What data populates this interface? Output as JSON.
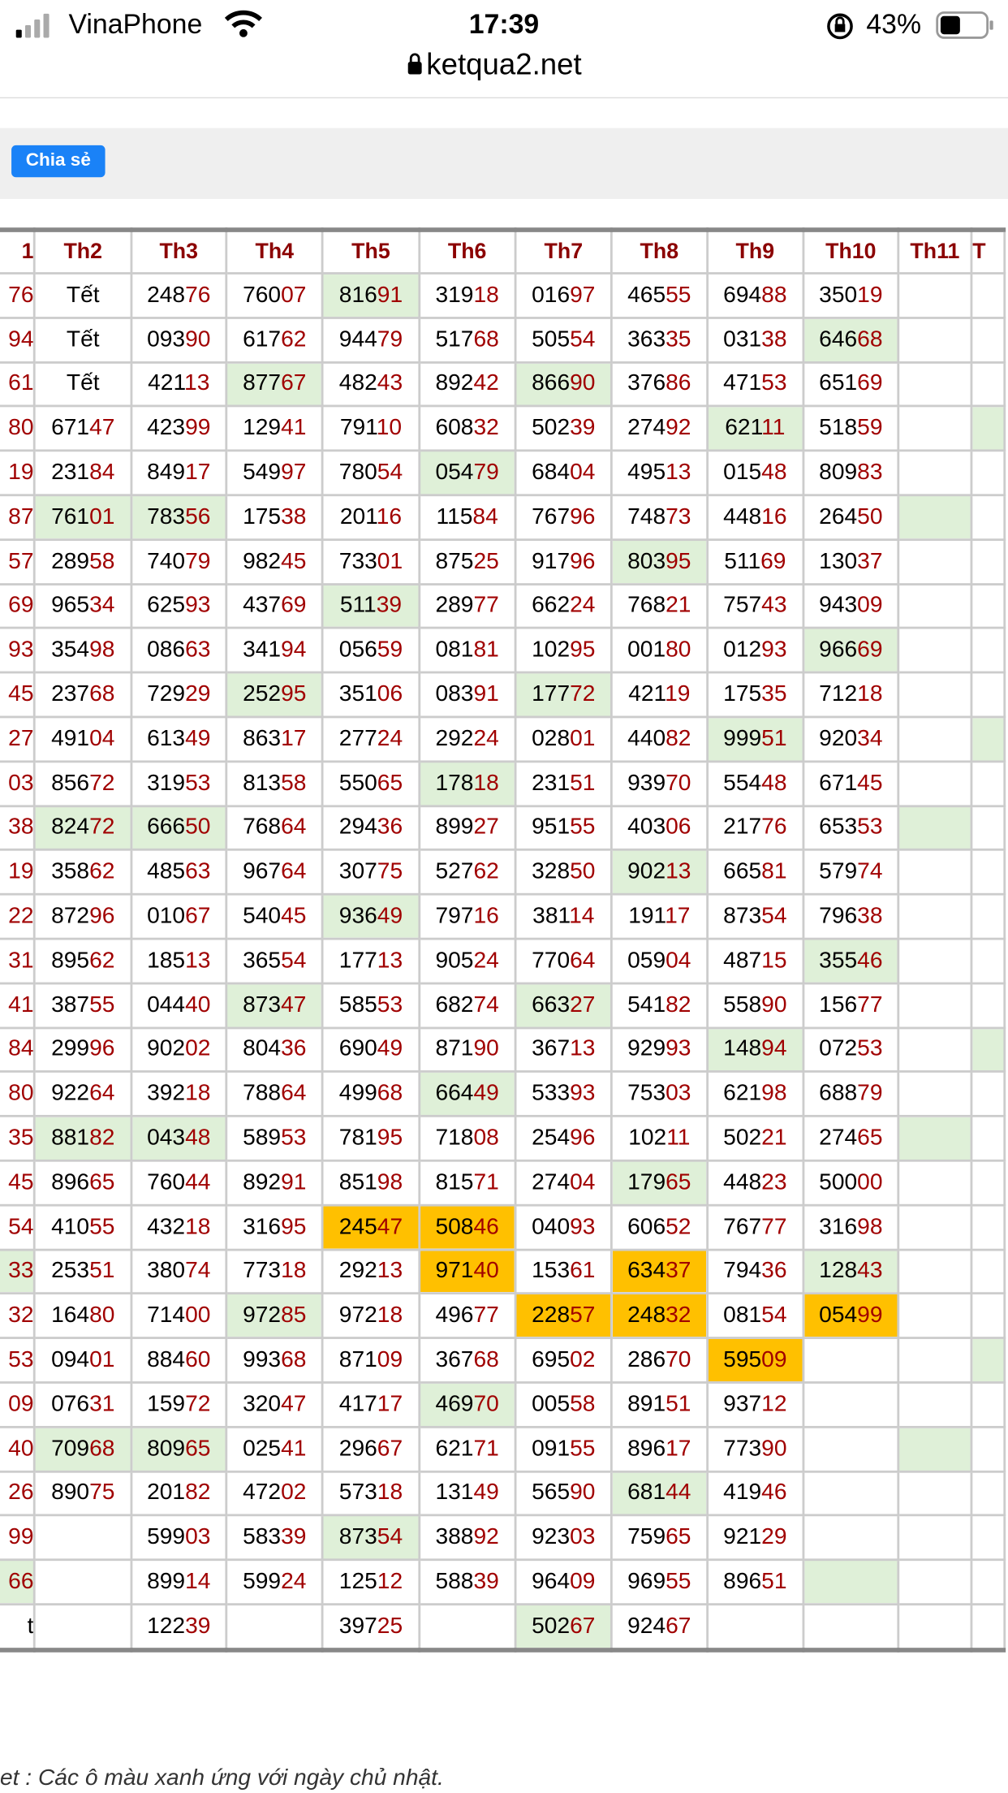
{
  "status": {
    "carrier": "VinaPhone",
    "time": "17:39",
    "battery": "43%"
  },
  "url": "ketqua2.net",
  "share_button": "Chia sẻ",
  "colors": {
    "green": "#dff0d8",
    "orange": "#ffc000"
  },
  "table": {
    "header": [
      "1",
      "Th2",
      "Th3",
      "Th4",
      "Th5",
      "Th6",
      "Th7",
      "Th8",
      "Th9",
      "Th10",
      "Th11",
      "T"
    ],
    "rows": [
      [
        "76",
        "Tết",
        "24876",
        "76007",
        {
          "text": "81691",
          "bg": "green"
        },
        "31918",
        "01697",
        "46555",
        "69488",
        "35019",
        null,
        null
      ],
      [
        "94",
        "Tết",
        "09390",
        "61762",
        "94479",
        "51768",
        "50554",
        "36335",
        "03138",
        {
          "text": "64668",
          "bg": "green"
        },
        null,
        null
      ],
      [
        "61",
        "Tết",
        "42113",
        {
          "text": "87767",
          "bg": "green"
        },
        "48243",
        "89242",
        {
          "text": "86690",
          "bg": "green"
        },
        "37686",
        "47153",
        "65169",
        null,
        null
      ],
      [
        "80",
        "67147",
        "42399",
        "12941",
        "79110",
        "60832",
        "50239",
        "27492",
        {
          "text": "62111",
          "bg": "green"
        },
        "51859",
        null,
        {
          "bg": "green"
        }
      ],
      [
        "19",
        "23184",
        "84917",
        "54997",
        "78054",
        {
          "text": "05479",
          "bg": "green"
        },
        "68404",
        "49513",
        "01548",
        "80983",
        null,
        null
      ],
      [
        "87",
        {
          "text": "76101",
          "bg": "green"
        },
        {
          "text": "78356",
          "bg": "green"
        },
        "17538",
        "20116",
        "11584",
        "76796",
        "74873",
        "44816",
        "26450",
        {
          "bg": "green"
        },
        null
      ],
      [
        "57",
        "28958",
        "74079",
        "98245",
        "73301",
        "87525",
        "91796",
        {
          "text": "80395",
          "bg": "green"
        },
        "51169",
        "13037",
        null,
        null
      ],
      [
        "69",
        "96534",
        "62593",
        "43769",
        {
          "text": "51139",
          "bg": "green"
        },
        "28977",
        "66224",
        "76821",
        "75743",
        "94309",
        null,
        null
      ],
      [
        "93",
        "35498",
        "08663",
        "34194",
        "05659",
        "08181",
        "10295",
        "00180",
        "01293",
        {
          "text": "96669",
          "bg": "green"
        },
        null,
        null
      ],
      [
        "45",
        "23768",
        "72929",
        {
          "text": "25295",
          "bg": "green"
        },
        "35106",
        "08391",
        {
          "text": "17772",
          "bg": "green"
        },
        "42119",
        "17535",
        "71218",
        null,
        null
      ],
      [
        "27",
        "49104",
        "61349",
        "86317",
        "27724",
        "29224",
        "02801",
        "44082",
        {
          "text": "99951",
          "bg": "green"
        },
        "92034",
        null,
        {
          "bg": "green"
        }
      ],
      [
        "03",
        "85672",
        "31953",
        "81358",
        "55065",
        {
          "text": "17818",
          "bg": "green"
        },
        "23151",
        "93970",
        "55448",
        "67145",
        null,
        null
      ],
      [
        "38",
        {
          "text": "82472",
          "bg": "green"
        },
        {
          "text": "66650",
          "bg": "green"
        },
        "76864",
        "29436",
        "89927",
        "95155",
        "40306",
        "21776",
        "65353",
        {
          "bg": "green"
        },
        null
      ],
      [
        "19",
        "35862",
        "48563",
        "96764",
        "30775",
        "52762",
        "32850",
        {
          "text": "90213",
          "bg": "green"
        },
        "66581",
        "57974",
        null,
        null
      ],
      [
        "22",
        "87296",
        "01067",
        "54045",
        {
          "text": "93649",
          "bg": "green"
        },
        "79716",
        "38114",
        "19117",
        "87354",
        "79638",
        null,
        null
      ],
      [
        "31",
        "89562",
        "18513",
        "36554",
        "17713",
        "90524",
        "77064",
        "05904",
        "48715",
        {
          "text": "35546",
          "bg": "green"
        },
        null,
        null
      ],
      [
        "41",
        "38755",
        "04440",
        {
          "text": "87347",
          "bg": "green"
        },
        "58553",
        "68274",
        {
          "text": "66327",
          "bg": "green"
        },
        "54182",
        "55890",
        "15677",
        null,
        null
      ],
      [
        "84",
        "29996",
        "90202",
        "80436",
        "69049",
        "87190",
        "36713",
        "92993",
        {
          "text": "14894",
          "bg": "green"
        },
        "07253",
        null,
        {
          "bg": "green"
        }
      ],
      [
        "80",
        "92264",
        "39218",
        "78864",
        "49968",
        {
          "text": "66449",
          "bg": "green"
        },
        "53393",
        "75303",
        "62198",
        "68879",
        null,
        null
      ],
      [
        "35",
        {
          "text": "88182",
          "bg": "green"
        },
        {
          "text": "04348",
          "bg": "green"
        },
        "58953",
        "78195",
        "71808",
        "25496",
        "10211",
        "50221",
        "27465",
        {
          "bg": "green"
        },
        null
      ],
      [
        "45",
        "89665",
        "76044",
        "89291",
        "85198",
        "81571",
        "27404",
        {
          "text": "17965",
          "bg": "green"
        },
        "44823",
        "50000",
        null,
        null
      ],
      [
        "54",
        "41055",
        "43218",
        "31695",
        {
          "text": "24547",
          "bg": "orange"
        },
        {
          "text": "50846",
          "bg": "orange"
        },
        "04093",
        "60652",
        "76777",
        "31698",
        null,
        null
      ],
      [
        {
          "text": "33",
          "bg": "green"
        },
        "25351",
        "38074",
        "77318",
        "29213",
        {
          "text": "97140",
          "bg": "orange"
        },
        "15361",
        {
          "text": "63437",
          "bg": "orange"
        },
        "79436",
        {
          "text": "12843",
          "bg": "green"
        },
        null,
        null
      ],
      [
        "32",
        "16480",
        "71400",
        {
          "text": "97285",
          "bg": "green"
        },
        "97218",
        "49677",
        {
          "text": "22857",
          "bg": "orange"
        },
        {
          "text": "24832",
          "bg": "orange"
        },
        "08154",
        {
          "text": "05499",
          "bg": "orange"
        },
        null,
        null
      ],
      [
        "53",
        "09401",
        "88460",
        "99368",
        "87109",
        "36768",
        "69502",
        "28670",
        {
          "text": "59509",
          "bg": "orange"
        },
        null,
        null,
        {
          "bg": "green"
        }
      ],
      [
        "09",
        "07631",
        "15972",
        "32047",
        "41717",
        {
          "text": "46970",
          "bg": "green"
        },
        "00558",
        "89151",
        "93712",
        null,
        null,
        null
      ],
      [
        "40",
        {
          "text": "70968",
          "bg": "green"
        },
        {
          "text": "80965",
          "bg": "green"
        },
        "02541",
        "29667",
        "62171",
        "09155",
        "89617",
        "77390",
        null,
        {
          "bg": "green"
        },
        null
      ],
      [
        "26",
        "89075",
        "20182",
        "47202",
        "57318",
        "13149",
        "56590",
        {
          "text": "68144",
          "bg": "green"
        },
        "41946",
        null,
        null,
        null
      ],
      [
        "99",
        null,
        "59903",
        "58339",
        {
          "text": "87354",
          "bg": "green"
        },
        "38892",
        "92303",
        "75965",
        "92129",
        null,
        null,
        null
      ],
      [
        {
          "text": "66",
          "bg": "green"
        },
        null,
        "89914",
        "59924",
        "12512",
        "58839",
        "96409",
        "96955",
        "89651",
        {
          "bg": "green"
        },
        null,
        null
      ],
      [
        "t",
        null,
        "12239",
        null,
        "39725",
        null,
        {
          "text": "50267",
          "bg": "green"
        },
        "92467",
        null,
        null,
        null,
        null
      ]
    ]
  },
  "footnote": "et : Các ô màu xanh ứng với ngày chủ nhật."
}
